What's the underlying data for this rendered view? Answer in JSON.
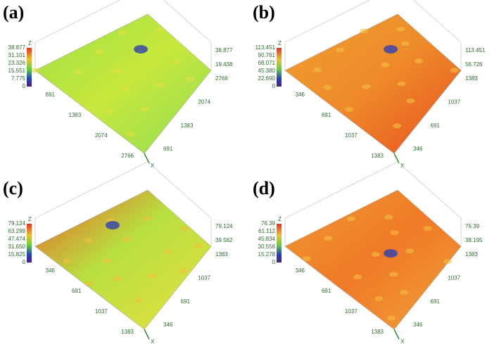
{
  "panels": [
    {
      "label": "(a)",
      "colorbar": [
        "38.877",
        "31.101",
        "23.326",
        "15.551",
        "7.775",
        "0"
      ],
      "z_axis": [
        "38.877",
        "19.438"
      ],
      "y_axis": [
        "2766",
        "2074",
        "1383",
        "691"
      ],
      "x_axis": [
        "691",
        "1383",
        "2074",
        "2766"
      ],
      "x_name": "X",
      "z_name": "Z"
    },
    {
      "label": "(b)",
      "colorbar": [
        "113.451",
        "90.761",
        "68.071",
        "45.380",
        "22.690",
        "0"
      ],
      "z_axis": [
        "113.451",
        "56.726"
      ],
      "y_axis": [
        "1383",
        "1037",
        "691",
        "346"
      ],
      "x_axis": [
        "346",
        "691",
        "1037",
        "1383"
      ],
      "x_name": "X",
      "z_name": "Z"
    },
    {
      "label": "(c)",
      "colorbar": [
        "79.124",
        "63.299",
        "47.474",
        "31.650",
        "15.825",
        "0"
      ],
      "z_axis": [
        "79.124",
        "39.562"
      ],
      "y_axis": [
        "1383",
        "1037",
        "691",
        "346"
      ],
      "x_axis": [
        "346",
        "691",
        "1037",
        "1383"
      ],
      "x_name": "X",
      "z_name": "Z"
    },
    {
      "label": "(d)",
      "colorbar": [
        "76.39",
        "61.112",
        "45.834",
        "30.556",
        "15.278",
        "0"
      ],
      "z_axis": [
        "76.39",
        "38.195"
      ],
      "y_axis": [
        "1383",
        "1037",
        "691",
        "346"
      ],
      "x_axis": [
        "346",
        "691",
        "1037",
        "1383"
      ],
      "x_name": "X",
      "z_name": "Z"
    }
  ]
}
